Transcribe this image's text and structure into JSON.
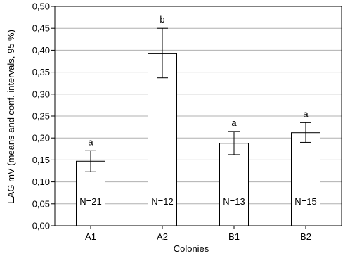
{
  "chart_data": {
    "type": "bar",
    "title": "",
    "xlabel": "Colonies",
    "ylabel": "EAG mV (means and conf. intervals, 95 %)",
    "categories": [
      "A1",
      "A2",
      "B1",
      "B2"
    ],
    "values": [
      0.147,
      0.392,
      0.188,
      0.212
    ],
    "ci_lower": [
      0.123,
      0.337,
      0.162,
      0.19
    ],
    "ci_upper": [
      0.171,
      0.45,
      0.215,
      0.235
    ],
    "significance_letters": [
      "a",
      "b",
      "a",
      "a"
    ],
    "n_labels": [
      "N=21",
      "N=12",
      "N=13",
      "N=15"
    ],
    "ylim": [
      0,
      0.5
    ],
    "yticks": [
      "0,00",
      "0,05",
      "0,10",
      "0,15",
      "0,20",
      "0,25",
      "0,30",
      "0,35",
      "0,40",
      "0,45",
      "0,50"
    ],
    "grid": true,
    "colors": {
      "bar_fill": "#ffffff",
      "bar_stroke": "#000000",
      "grid": "#b0b0b0"
    }
  }
}
